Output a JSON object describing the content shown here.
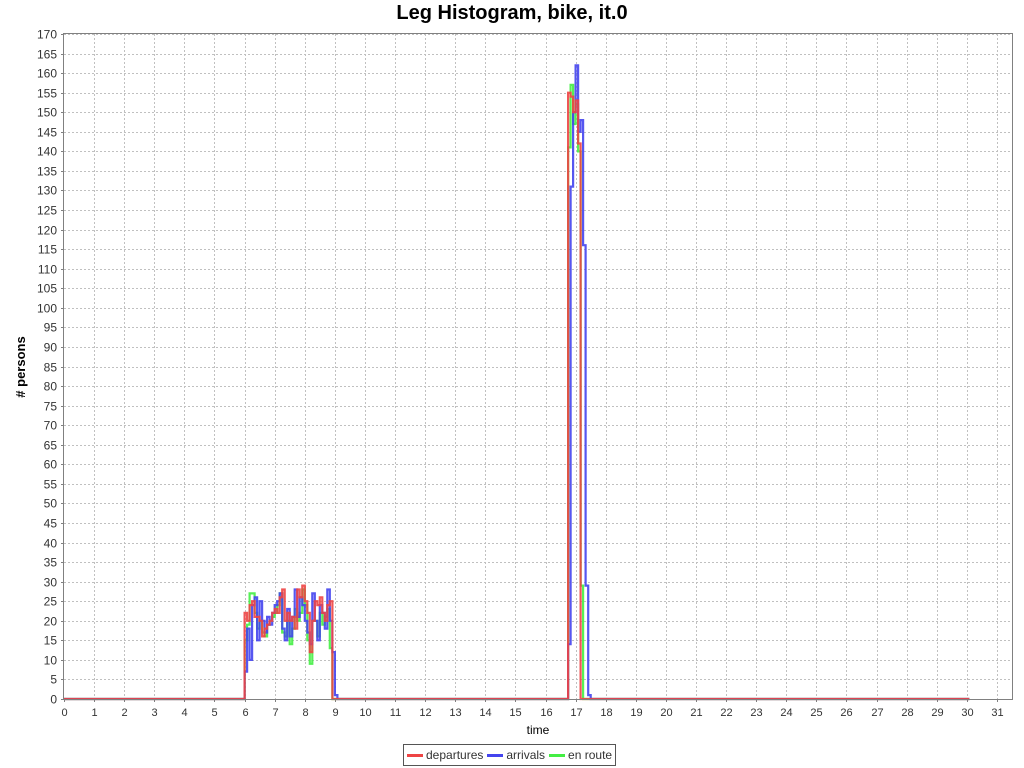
{
  "chart_data": {
    "type": "line",
    "title": "Leg Histogram, bike, it.0",
    "xlabel": "time",
    "ylabel": "# persons",
    "xlim": [
      0,
      31.5
    ],
    "ylim": [
      0,
      170
    ],
    "xticks": [
      0,
      1,
      2,
      3,
      4,
      5,
      6,
      7,
      8,
      9,
      10,
      11,
      12,
      13,
      14,
      15,
      16,
      17,
      18,
      19,
      20,
      21,
      22,
      23,
      24,
      25,
      26,
      27,
      28,
      29,
      30,
      31
    ],
    "yticks": [
      0,
      5,
      10,
      15,
      20,
      25,
      30,
      35,
      40,
      45,
      50,
      55,
      60,
      65,
      70,
      75,
      80,
      85,
      90,
      95,
      100,
      105,
      110,
      115,
      120,
      125,
      130,
      135,
      140,
      145,
      150,
      155,
      160,
      165,
      170
    ],
    "grid": true,
    "legend_position": "bottom-center",
    "step": "post",
    "series": [
      {
        "name": "departures",
        "color": "#ee4444",
        "x": [
          0,
          6.0,
          6.083,
          6.167,
          6.25,
          6.333,
          6.417,
          6.5,
          6.583,
          6.667,
          6.75,
          6.833,
          6.917,
          7.0,
          7.083,
          7.167,
          7.25,
          7.333,
          7.417,
          7.5,
          7.583,
          7.667,
          7.75,
          7.833,
          7.917,
          8.0,
          8.083,
          8.167,
          8.25,
          8.333,
          8.417,
          8.5,
          8.583,
          8.667,
          8.75,
          8.833,
          8.917,
          9.0,
          16.75,
          16.833,
          16.917,
          17.0,
          17.083,
          17.167,
          30.083
        ],
        "y": [
          0,
          22,
          20,
          24,
          25,
          21,
          21,
          20,
          16,
          18,
          19,
          20,
          22,
          23,
          22,
          26,
          28,
          20,
          22,
          20,
          21,
          18,
          28,
          26,
          29,
          25,
          22,
          12,
          20,
          25,
          24,
          26,
          22,
          20,
          24,
          25,
          0,
          0,
          155,
          154,
          150,
          153,
          142,
          0,
          0
        ]
      },
      {
        "name": "arrivals",
        "color": "#4444ee",
        "x": [
          0,
          6.0,
          6.083,
          6.167,
          6.25,
          6.333,
          6.417,
          6.5,
          6.583,
          6.667,
          6.75,
          6.833,
          6.917,
          7.0,
          7.083,
          7.167,
          7.25,
          7.333,
          7.417,
          7.5,
          7.583,
          7.667,
          7.75,
          7.833,
          7.917,
          8.0,
          8.083,
          8.167,
          8.25,
          8.333,
          8.417,
          8.5,
          8.583,
          8.667,
          8.75,
          8.833,
          8.917,
          9.0,
          9.083,
          9.167,
          16.75,
          16.833,
          16.917,
          17.0,
          17.083,
          17.167,
          17.25,
          17.333,
          17.417,
          17.5,
          30.083
        ],
        "y": [
          0,
          7,
          18,
          10,
          24,
          26,
          15,
          25,
          20,
          17,
          21,
          19,
          22,
          24,
          25,
          27,
          18,
          15,
          23,
          16,
          21,
          28,
          21,
          26,
          24,
          20,
          17,
          14,
          27,
          20,
          15,
          24,
          22,
          18,
          28,
          20,
          12,
          1,
          0,
          0,
          14,
          131,
          150,
          162,
          145,
          148,
          116,
          29,
          1,
          0,
          0
        ]
      },
      {
        "name": "en route",
        "color": "#44ee44",
        "x": [
          0,
          6.0,
          6.083,
          6.167,
          6.25,
          6.333,
          6.417,
          6.5,
          6.583,
          6.667,
          6.75,
          6.833,
          6.917,
          7.0,
          7.083,
          7.167,
          7.25,
          7.333,
          7.417,
          7.5,
          7.583,
          7.667,
          7.75,
          7.833,
          7.917,
          8.0,
          8.083,
          8.167,
          8.25,
          8.333,
          8.417,
          8.5,
          8.583,
          8.667,
          8.75,
          8.833,
          8.917,
          9.0,
          16.75,
          16.833,
          16.917,
          17.0,
          17.083,
          17.167,
          17.25,
          17.333,
          30.083
        ],
        "y": [
          0,
          15,
          19,
          27,
          27,
          22,
          18,
          20,
          17,
          16,
          19,
          20,
          21,
          22,
          24,
          27,
          17,
          16,
          20,
          14,
          18,
          23,
          20,
          22,
          28,
          24,
          15,
          9,
          20,
          20,
          16,
          22,
          19,
          21,
          23,
          13,
          0,
          0,
          141,
          157,
          147,
          152,
          140,
          29,
          0,
          0,
          0
        ]
      }
    ]
  }
}
